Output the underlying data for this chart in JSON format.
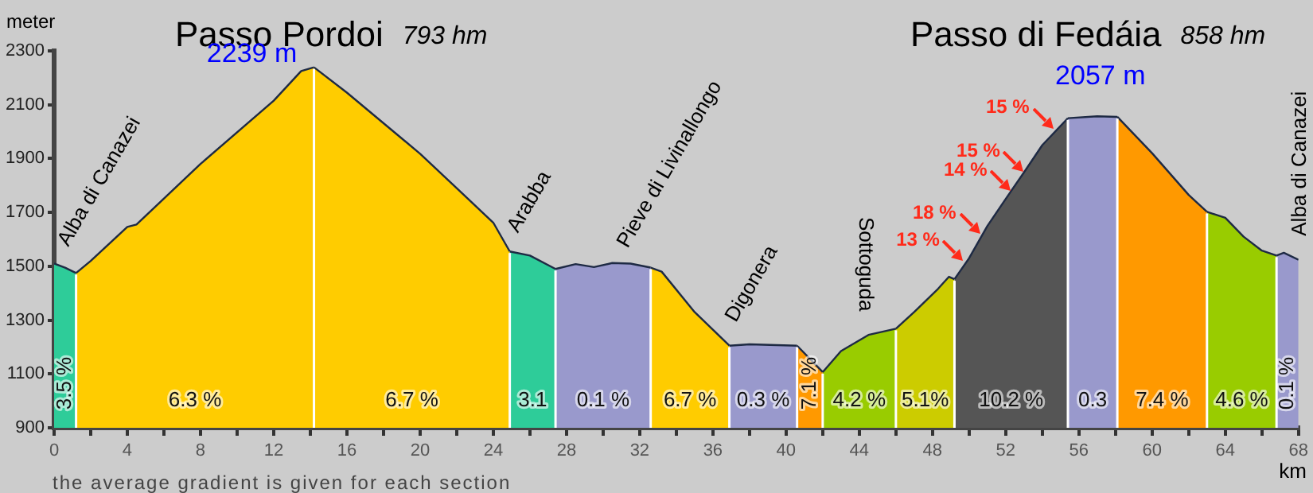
{
  "chart_data": {
    "type": "area",
    "xlabel": "km",
    "ylabel": "meter",
    "xlim": [
      0,
      68
    ],
    "ylim": [
      900,
      2300
    ],
    "xticks": [
      0,
      {
        "value": 2,
        "label": null
      },
      4,
      {
        "value": 6,
        "label": null
      },
      8,
      {
        "value": 10,
        "label": null
      },
      12,
      {
        "value": 14,
        "label": null
      },
      16,
      {
        "value": 18,
        "label": null
      },
      20,
      {
        "value": 22,
        "label": null
      },
      24,
      {
        "value": 26,
        "label": null
      },
      28,
      {
        "value": 30,
        "label": null
      },
      32,
      {
        "value": 34,
        "label": null
      },
      36,
      {
        "value": 38,
        "label": null
      },
      40,
      {
        "value": 42,
        "label": null
      },
      44,
      {
        "value": 46,
        "label": null
      },
      48,
      {
        "value": 50,
        "label": null
      },
      52,
      {
        "value": 54,
        "label": null
      },
      56,
      {
        "value": 58,
        "label": null
      },
      60,
      {
        "value": 62,
        "label": null
      },
      64,
      {
        "value": 66,
        "label": null
      },
      68
    ],
    "yticks": [
      900,
      1100,
      1300,
      1500,
      1700,
      1900,
      2100,
      2300
    ],
    "series": [
      {
        "name": "3.5 %",
        "color": "#2ecc99",
        "x": [
          0,
          0.6,
          1.2
        ],
        "values": [
          1510,
          1495,
          1475
        ]
      },
      {
        "name": "6.3 %",
        "color": "#ffcc00",
        "x": [
          1.2,
          2,
          4,
          4.5,
          8,
          12,
          13.5,
          14.2
        ],
        "values": [
          1475,
          1520,
          1646,
          1655,
          1880,
          2115,
          2225,
          2239
        ]
      },
      {
        "name": "6.7 %",
        "color": "#ffcc00",
        "x": [
          14.2,
          16,
          20,
          22,
          24,
          24.9
        ],
        "values": [
          2239,
          2145,
          1918,
          1790,
          1662,
          1555
        ]
      },
      {
        "name": "3.1",
        "color": "#2ecc99",
        "x": [
          24.9,
          26,
          27.4
        ],
        "values": [
          1555,
          1540,
          1490
        ]
      },
      {
        "name": "0.1 %",
        "color": "#9999cc",
        "x": [
          27.4,
          28.5,
          29.5,
          30.5,
          31.5,
          32.6
        ],
        "values": [
          1490,
          1508,
          1497,
          1512,
          1510,
          1495
        ]
      },
      {
        "name": "6.7 %",
        "color": "#ffcc00",
        "x": [
          32.6,
          33.2,
          35,
          36.9
        ],
        "values": [
          1495,
          1480,
          1330,
          1205
        ]
      },
      {
        "name": "0.3 %",
        "color": "#9999cc",
        "x": [
          36.9,
          38,
          40.6
        ],
        "values": [
          1205,
          1210,
          1205
        ]
      },
      {
        "name": "7.1 %",
        "color": "#ff9900",
        "x": [
          40.6,
          42
        ],
        "values": [
          1205,
          1107
        ]
      },
      {
        "name": "4.2 %",
        "color": "#99cc00",
        "x": [
          42,
          43,
          44,
          44.5,
          46
        ],
        "values": [
          1107,
          1185,
          1225,
          1245,
          1268
        ]
      },
      {
        "name": "5.1%",
        "color": "#cccc00",
        "x": [
          46,
          47,
          48.3,
          48.9,
          49.2
        ],
        "values": [
          1268,
          1330,
          1416,
          1461,
          1452
        ]
      },
      {
        "name": "10.2 %",
        "color": "#555555",
        "x": [
          49.2,
          50,
          51,
          52.3,
          53,
          54,
          55.4
        ],
        "values": [
          1452,
          1530,
          1650,
          1780,
          1849,
          1950,
          2050
        ]
      },
      {
        "name": "0.3",
        "color": "#9999cc",
        "x": [
          55.4,
          57,
          58.1
        ],
        "values": [
          2050,
          2057,
          2055
        ]
      },
      {
        "name": "7.4 %",
        "color": "#ff9900",
        "x": [
          58.1,
          60,
          62,
          63
        ],
        "values": [
          2055,
          1920,
          1765,
          1702
        ]
      },
      {
        "name": "4.6 %",
        "color": "#99cc00",
        "x": [
          63,
          64,
          65,
          66,
          66.8
        ],
        "values": [
          1702,
          1680,
          1610,
          1558,
          1540
        ]
      },
      {
        "name": "0.1 %",
        "color": "#9999cc",
        "x": [
          66.8,
          67.2,
          68
        ],
        "values": [
          1540,
          1550,
          1524
        ]
      }
    ],
    "annotations": [
      "Passo Pordoi",
      "793 hm",
      "Passo di Fedáia",
      "858 hm",
      "the average gradient is given for each section",
      {
        "text": "2239 m",
        "x": 14.2,
        "y": 2239
      },
      {
        "text": "2057 m",
        "x": 57,
        "y": 2057
      },
      {
        "text": "Alba di Canazei",
        "x": 1.2,
        "y": 1475
      },
      {
        "text": "Arabba",
        "x": 24.9,
        "y": 1555
      },
      {
        "text": "Pieve di Livinallongo",
        "x": 30.9,
        "y": 1510
      },
      {
        "text": "Digonera",
        "x": 36.9,
        "y": 1205
      },
      {
        "text": "Sottoguda",
        "x": 44.6,
        "y": 1250
      },
      {
        "text": "Alba di Canazei",
        "x": 68,
        "y": 1524
      },
      {
        "text": "13 %",
        "x": 49.7,
        "y": 1520
      },
      {
        "text": "18 %",
        "x": 50.6,
        "y": 1619
      },
      {
        "text": "14 %",
        "x": 52.3,
        "y": 1780
      },
      {
        "text": "15 %",
        "x": 53,
        "y": 1849
      },
      {
        "text": "15 %",
        "x": 54.6,
        "y": 2012
      }
    ]
  }
}
